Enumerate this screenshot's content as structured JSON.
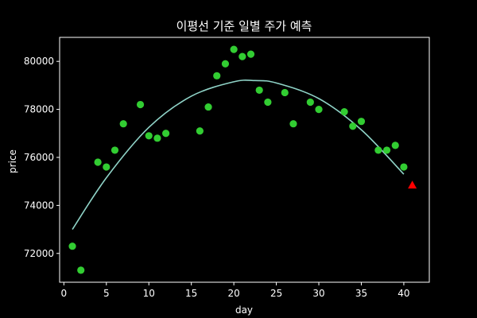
{
  "chart_data": {
    "type": "scatter",
    "title": "이평선 기준 일별 주가 예측",
    "xlabel": "day",
    "ylabel": "price",
    "xlim": [
      -0.5,
      43
    ],
    "ylim": [
      70800,
      81000
    ],
    "xticks": [
      0,
      5,
      10,
      15,
      20,
      25,
      30,
      35,
      40
    ],
    "yticks": [
      72000,
      74000,
      76000,
      78000,
      80000
    ],
    "grid": false,
    "colors": {
      "background": "#000000",
      "axes": "#ffffff",
      "points": "#32cd32",
      "fit_line": "#8fd3c7",
      "prediction": "#ff0000"
    },
    "series": [
      {
        "kind": "points",
        "points": [
          [
            1,
            72300
          ],
          [
            2,
            71300
          ],
          [
            4,
            75800
          ],
          [
            5,
            75600
          ],
          [
            6,
            76300
          ],
          [
            7,
            77400
          ],
          [
            9,
            78200
          ],
          [
            10,
            76900
          ],
          [
            11,
            76800
          ],
          [
            12,
            77000
          ],
          [
            16,
            77100
          ],
          [
            17,
            78100
          ],
          [
            18,
            79400
          ],
          [
            19,
            79900
          ],
          [
            20,
            80500
          ],
          [
            21,
            80200
          ],
          [
            22,
            80300
          ],
          [
            23,
            78800
          ],
          [
            24,
            78300
          ],
          [
            26,
            78700
          ],
          [
            27,
            77400
          ],
          [
            29,
            78300
          ],
          [
            30,
            78000
          ],
          [
            33,
            77900
          ],
          [
            34,
            77300
          ],
          [
            35,
            77500
          ],
          [
            37,
            76300
          ],
          [
            38,
            76300
          ],
          [
            39,
            76500
          ],
          [
            40,
            75600
          ]
        ]
      },
      {
        "kind": "fit_line",
        "points": [
          [
            1,
            73000
          ],
          [
            5,
            75150
          ],
          [
            10,
            77250
          ],
          [
            15,
            78550
          ],
          [
            20,
            79150
          ],
          [
            22.5,
            79200
          ],
          [
            25,
            79100
          ],
          [
            30,
            78450
          ],
          [
            35,
            77150
          ],
          [
            40,
            75300
          ]
        ]
      },
      {
        "kind": "prediction",
        "points": [
          [
            41,
            74850
          ]
        ]
      }
    ]
  }
}
